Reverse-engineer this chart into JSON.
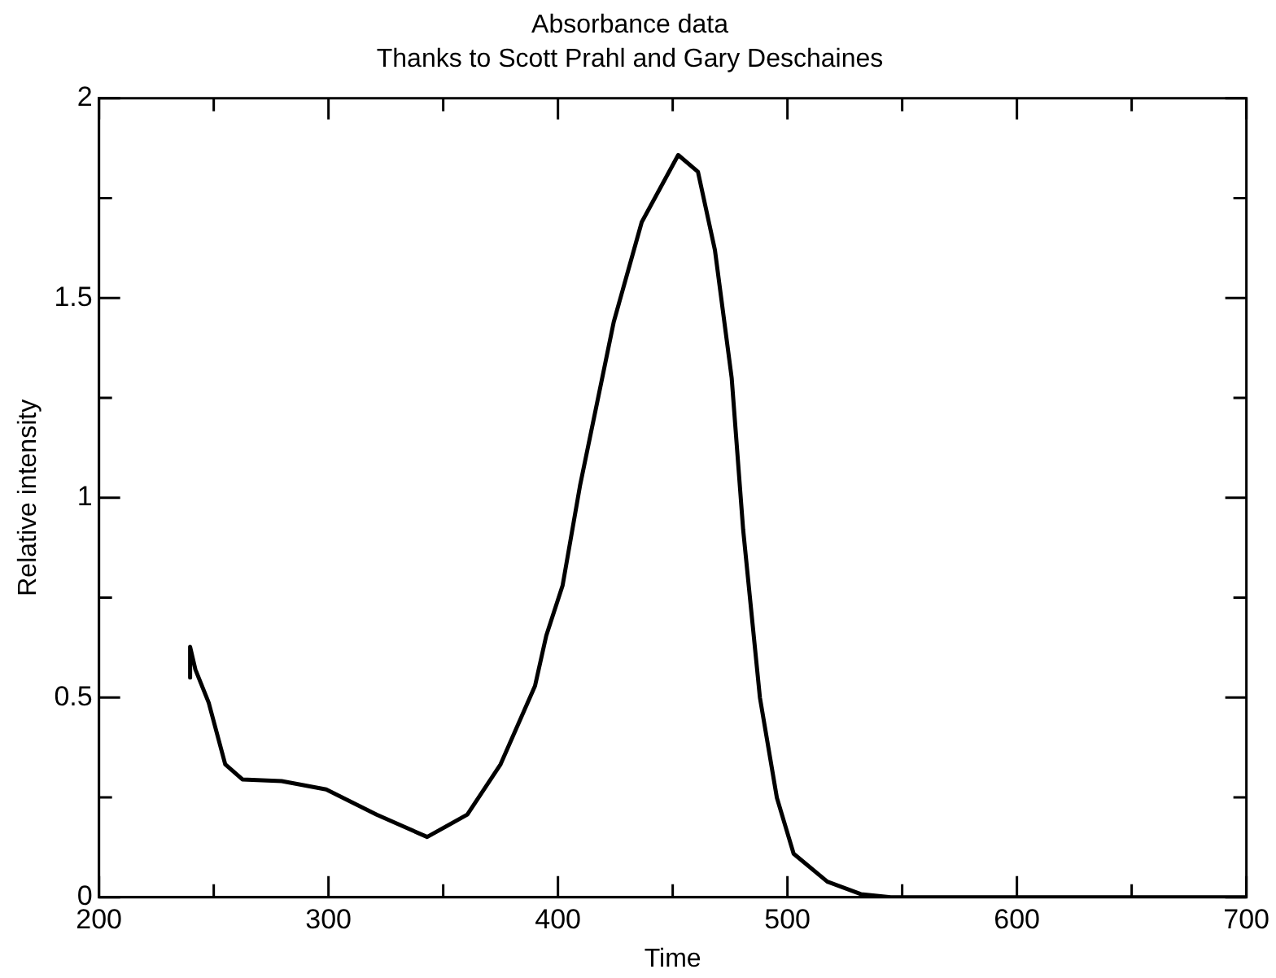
{
  "chart_data": {
    "type": "line",
    "title": "Absorbance data",
    "subtitle": "Thanks to Scott Prahl and Gary Deschaines",
    "xlabel": "Time",
    "ylabel": "Relative intensity",
    "x": [
      239.7,
      239.7,
      242,
      247.8,
      255,
      262.5,
      279.6,
      299,
      321,
      343,
      360.5,
      375,
      390,
      394.9,
      402,
      409.6,
      424.3,
      436.5,
      452.4,
      461,
      468.4,
      475.7,
      480.7,
      488,
      495.4,
      502.7,
      517.4,
      532,
      545,
      600,
      700
    ],
    "series": [
      {
        "color": "#000000",
        "values": [
          0.55,
          0.627,
          0.57,
          0.487,
          0.333,
          0.295,
          0.291,
          0.27,
          0.207,
          0.151,
          0.207,
          0.333,
          0.529,
          0.655,
          0.78,
          1.03,
          1.44,
          1.69,
          1.858,
          1.816,
          1.62,
          1.3,
          0.92,
          0.5,
          0.249,
          0.109,
          0.039,
          0.008,
          0,
          0,
          0
        ]
      }
    ],
    "xlim": [
      200,
      700
    ],
    "ylim": [
      0,
      2
    ],
    "xticks": [
      200,
      {
        "value": 250,
        "label": null
      },
      300,
      {
        "value": 350,
        "label": null
      },
      400,
      {
        "value": 450,
        "label": null
      },
      500,
      {
        "value": 550,
        "label": null
      },
      600,
      {
        "value": 650,
        "label": null
      },
      700
    ],
    "yticks": [
      0,
      {
        "value": 0.25,
        "label": null
      },
      0.5,
      {
        "value": 0.75,
        "label": null
      },
      1,
      {
        "value": 1.25,
        "label": null
      },
      1.5,
      {
        "value": 1.75,
        "label": null
      },
      2
    ],
    "grid": false,
    "legend": false,
    "marker": "none",
    "line_style": "solid"
  }
}
